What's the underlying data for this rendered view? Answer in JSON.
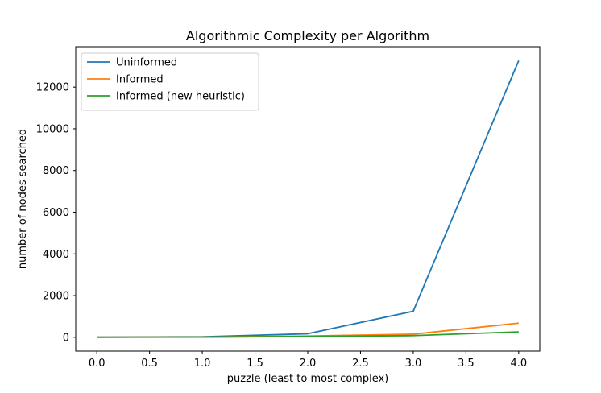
{
  "chart_data": {
    "type": "line",
    "title": "Algorithmic Complexity per Algorithm",
    "xlabel": "puzzle (least to most complex)",
    "ylabel": "number of nodes searched",
    "x": [
      0,
      1,
      2,
      3,
      4
    ],
    "xlim": [
      -0.2,
      4.2
    ],
    "ylim": [
      -663,
      13938
    ],
    "xticks": [
      0.0,
      0.5,
      1.0,
      1.5,
      2.0,
      2.5,
      3.0,
      3.5,
      4.0
    ],
    "xtick_labels": [
      "0.0",
      "0.5",
      "1.0",
      "1.5",
      "2.0",
      "2.5",
      "3.0",
      "3.5",
      "4.0"
    ],
    "yticks": [
      0,
      2000,
      4000,
      6000,
      8000,
      10000,
      12000
    ],
    "ytick_labels": [
      "0",
      "2000",
      "4000",
      "6000",
      "8000",
      "10000",
      "12000"
    ],
    "grid": false,
    "legend_position": "top-left",
    "series": [
      {
        "name": "Uninformed",
        "color": "#1f77b4",
        "values": [
          5,
          25,
          170,
          1250,
          13270
        ]
      },
      {
        "name": "Informed",
        "color": "#ff7f0e",
        "values": [
          4,
          12,
          60,
          150,
          680
        ]
      },
      {
        "name": "Informed (new heuristic)",
        "color": "#2ca02c",
        "values": [
          3,
          10,
          40,
          80,
          260
        ]
      }
    ]
  }
}
